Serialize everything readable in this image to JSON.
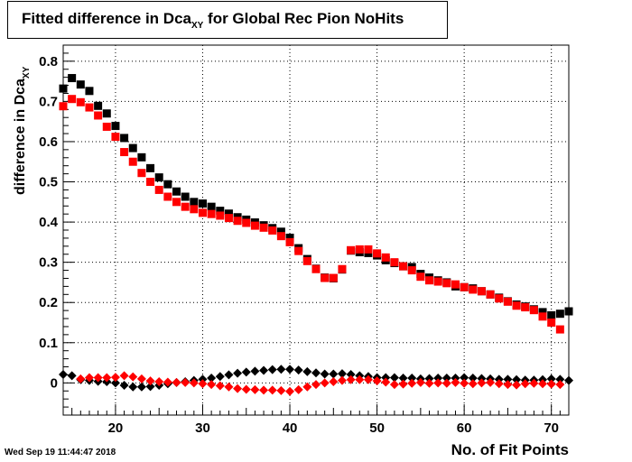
{
  "title": {
    "prefix": "Fitted difference in Dca",
    "subscript": "XY",
    "suffix": " for Global Rec Pion NoHits"
  },
  "footer": {
    "date": "Wed Sep 19 11:44:47 2018"
  },
  "chart_data": {
    "type": "scatter",
    "xlabel": "No. of Fit Points",
    "ylabel": {
      "prefix": "difference in Dca",
      "subscript": "XY"
    },
    "xlim": [
      14,
      72
    ],
    "ylim": [
      -0.08,
      0.84
    ],
    "xticks": [
      20,
      30,
      40,
      50,
      60,
      70
    ],
    "yticks": [
      0,
      0.1,
      0.2,
      0.3,
      0.4,
      0.5,
      0.6,
      0.7,
      0.8
    ],
    "ytick_labels": [
      "0",
      "0.1",
      "0.2",
      "0.3",
      "0.4",
      "0.5",
      "0.6",
      "0.7",
      "0.8"
    ],
    "grid": true,
    "series": [
      {
        "marker": "square",
        "color": "#000000",
        "x": [
          14,
          15,
          16,
          17,
          18,
          19,
          20,
          21,
          22,
          23,
          24,
          25,
          26,
          27,
          28,
          29,
          30,
          31,
          32,
          33,
          34,
          35,
          36,
          37,
          38,
          39,
          40,
          41,
          42,
          43,
          44,
          45,
          46,
          47,
          48,
          49,
          50,
          51,
          52,
          53,
          54,
          55,
          56,
          57,
          58,
          59,
          60,
          61,
          62,
          63,
          64,
          65,
          66,
          67,
          68,
          69,
          70,
          71,
          72
        ],
        "y": [
          0.732,
          0.758,
          0.742,
          0.726,
          0.689,
          0.67,
          0.639,
          0.609,
          0.584,
          0.561,
          0.534,
          0.511,
          0.494,
          0.476,
          0.463,
          0.45,
          0.446,
          0.438,
          0.428,
          0.421,
          0.412,
          0.406,
          0.399,
          0.392,
          0.385,
          0.376,
          0.361,
          0.335,
          0.308,
          0.284,
          0.262,
          0.26,
          0.282,
          0.329,
          0.325,
          0.323,
          0.317,
          0.305,
          0.298,
          0.29,
          0.288,
          0.271,
          0.262,
          0.255,
          0.25,
          0.24,
          0.238,
          0.235,
          0.228,
          0.22,
          0.212,
          0.203,
          0.195,
          0.19,
          0.183,
          0.176,
          0.168,
          0.172,
          0.178
        ]
      },
      {
        "marker": "square",
        "color": "#ff0000",
        "x": [
          14,
          15,
          16,
          17,
          18,
          19,
          20,
          21,
          22,
          23,
          24,
          25,
          26,
          27,
          28,
          29,
          30,
          31,
          32,
          33,
          34,
          35,
          36,
          37,
          38,
          39,
          40,
          41,
          42,
          43,
          44,
          45,
          46,
          47,
          48,
          49,
          50,
          51,
          52,
          53,
          54,
          55,
          56,
          57,
          58,
          59,
          60,
          61,
          62,
          63,
          64,
          65,
          66,
          67,
          68,
          69,
          70,
          71
        ],
        "y": [
          0.688,
          0.706,
          0.698,
          0.685,
          0.665,
          0.637,
          0.612,
          0.574,
          0.55,
          0.522,
          0.5,
          0.48,
          0.463,
          0.45,
          0.438,
          0.432,
          0.423,
          0.42,
          0.416,
          0.41,
          0.403,
          0.398,
          0.391,
          0.386,
          0.379,
          0.365,
          0.35,
          0.328,
          0.303,
          0.283,
          0.261,
          0.261,
          0.283,
          0.33,
          0.332,
          0.332,
          0.322,
          0.312,
          0.3,
          0.29,
          0.28,
          0.264,
          0.255,
          0.252,
          0.248,
          0.245,
          0.238,
          0.232,
          0.228,
          0.22,
          0.21,
          0.202,
          0.192,
          0.188,
          0.181,
          0.165,
          0.15,
          0.133
        ]
      },
      {
        "marker": "diamond",
        "color": "#000000",
        "x": [
          14,
          15,
          16,
          17,
          18,
          19,
          20,
          21,
          22,
          23,
          24,
          25,
          26,
          27,
          28,
          29,
          30,
          31,
          32,
          33,
          34,
          35,
          36,
          37,
          38,
          39,
          40,
          41,
          42,
          43,
          44,
          45,
          46,
          47,
          48,
          49,
          50,
          51,
          52,
          53,
          54,
          55,
          56,
          57,
          58,
          59,
          60,
          61,
          62,
          63,
          64,
          65,
          66,
          67,
          68,
          69,
          70,
          71,
          72
        ],
        "y": [
          0.021,
          0.018,
          0.008,
          0.006,
          0.004,
          0.003,
          0.0,
          -0.006,
          -0.01,
          -0.01,
          -0.009,
          -0.006,
          -0.002,
          0.001,
          0.003,
          0.006,
          0.009,
          0.012,
          0.016,
          0.02,
          0.024,
          0.027,
          0.029,
          0.031,
          0.033,
          0.034,
          0.034,
          0.032,
          0.028,
          0.025,
          0.022,
          0.022,
          0.023,
          0.021,
          0.018,
          0.016,
          0.013,
          0.013,
          0.013,
          0.012,
          0.012,
          0.01,
          0.011,
          0.012,
          0.012,
          0.012,
          0.013,
          0.012,
          0.011,
          0.01,
          0.009,
          0.009,
          0.008,
          0.007,
          0.007,
          0.008,
          0.01,
          0.009,
          0.006
        ]
      },
      {
        "marker": "diamond",
        "color": "#ff0000",
        "x": [
          16,
          17,
          18,
          19,
          20,
          21,
          22,
          23,
          24,
          25,
          26,
          27,
          28,
          29,
          30,
          31,
          32,
          33,
          34,
          35,
          36,
          37,
          38,
          39,
          40,
          41,
          42,
          43,
          44,
          45,
          46,
          47,
          48,
          49,
          50,
          51,
          52,
          53,
          54,
          55,
          56,
          57,
          58,
          59,
          60,
          61,
          62,
          63,
          64,
          65,
          66,
          67,
          68,
          69,
          70,
          71
        ],
        "y": [
          0.01,
          0.013,
          0.013,
          0.013,
          0.014,
          0.018,
          0.015,
          0.01,
          0.005,
          0.003,
          0.002,
          0.001,
          0.001,
          0.0,
          -0.002,
          -0.004,
          -0.007,
          -0.01,
          -0.014,
          -0.016,
          -0.017,
          -0.018,
          -0.018,
          -0.019,
          -0.021,
          -0.017,
          -0.01,
          -0.004,
          0.0,
          0.003,
          0.006,
          0.008,
          0.008,
          0.008,
          0.005,
          0.002,
          -0.004,
          -0.003,
          -0.001,
          0.001,
          -0.001,
          0.0,
          -0.001,
          0.001,
          -0.001,
          -0.002,
          0.0,
          0.001,
          -0.002,
          -0.004,
          -0.005,
          -0.002,
          -0.001,
          -0.002,
          -0.003,
          -0.004
        ]
      }
    ]
  }
}
